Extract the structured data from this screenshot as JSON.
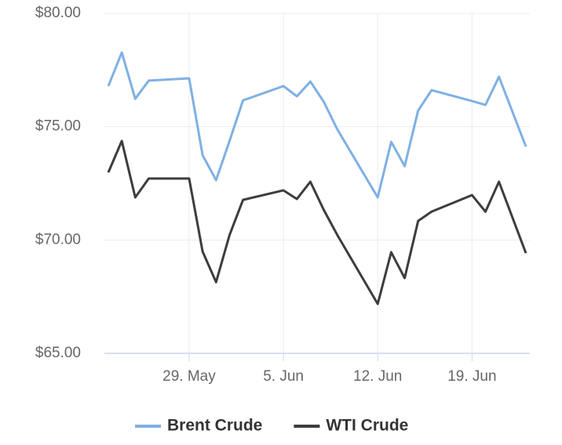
{
  "chart_data": {
    "type": "line",
    "x": [
      "23. May",
      "24. May",
      "25. May",
      "26. May",
      "29. May",
      "30. May",
      "31. May",
      "1. Jun",
      "2. Jun",
      "5. Jun",
      "6. Jun",
      "7. Jun",
      "8. Jun",
      "9. Jun",
      "12. Jun",
      "13. Jun",
      "14. Jun",
      "15. Jun",
      "16. Jun",
      "19. Jun",
      "20. Jun",
      "21. Jun",
      "23. Jun"
    ],
    "series": [
      {
        "name": "Brent Crude",
        "color": "#7fb0e3",
        "values": [
          76.79,
          78.27,
          76.23,
          77.03,
          77.13,
          73.74,
          72.64,
          74.37,
          76.16,
          76.79,
          76.34,
          76.99,
          76.09,
          74.88,
          71.88,
          74.33,
          73.26,
          75.71,
          76.61,
          76.13,
          75.96,
          77.2,
          74.12
        ]
      },
      {
        "name": "WTI Crude",
        "color": "#3d3d3f",
        "values": [
          72.98,
          74.37,
          71.88,
          72.71,
          72.71,
          69.49,
          68.14,
          70.22,
          71.77,
          72.19,
          71.81,
          72.57,
          71.32,
          70.22,
          67.18,
          69.46,
          68.32,
          70.84,
          71.25,
          71.98,
          71.25,
          72.57,
          69.42
        ]
      }
    ],
    "xlim": [
      "23. May",
      "23. Jun"
    ],
    "xticks": [
      "29. May",
      "5. Jun",
      "12. Jun",
      "19. Jun"
    ],
    "ylim": [
      65,
      80
    ],
    "yticks": [
      {
        "value": 65,
        "label": "$65.00"
      },
      {
        "value": 70,
        "label": "$70.00"
      },
      {
        "value": 75,
        "label": "$75.00"
      },
      {
        "value": 80,
        "label": "$80.00"
      }
    ],
    "grid": true,
    "legend": "bottom"
  }
}
